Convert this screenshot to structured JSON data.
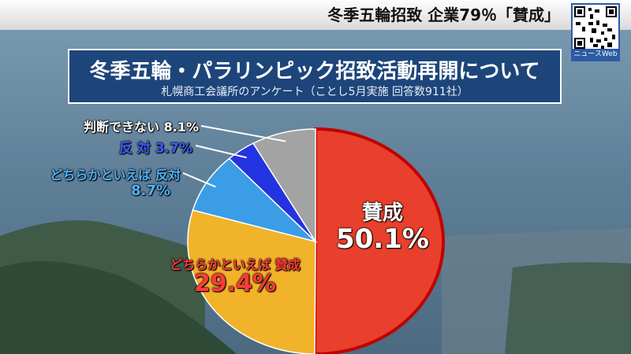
{
  "header": {
    "headline": "冬季五輪招致 企業79％「賛成」",
    "qr_caption": "ニュースWeb"
  },
  "chart_data": {
    "type": "pie",
    "title": "冬季五輪・パラリンピック招致活動再開について",
    "subtitle": "札幌商工会議所のアンケート（ことし5月実施 回答数911社）",
    "slices": [
      {
        "label": "賛成",
        "value": 50.1,
        "display": "50.1%",
        "color": "#e8402c"
      },
      {
        "label": "どちらかといえば 賛成",
        "value": 29.4,
        "display": "29.4%",
        "color": "#f1b32a"
      },
      {
        "label": "どちらかといえば 反対",
        "value": 8.7,
        "display": "8.7%",
        "color": "#3a9de6"
      },
      {
        "label": "反 対",
        "value": 3.7,
        "display": "3.7%",
        "color": "#2433e0"
      },
      {
        "label": "判断できない",
        "value": 8.1,
        "display": "8.1%",
        "color": "#a3a3a3"
      }
    ]
  }
}
